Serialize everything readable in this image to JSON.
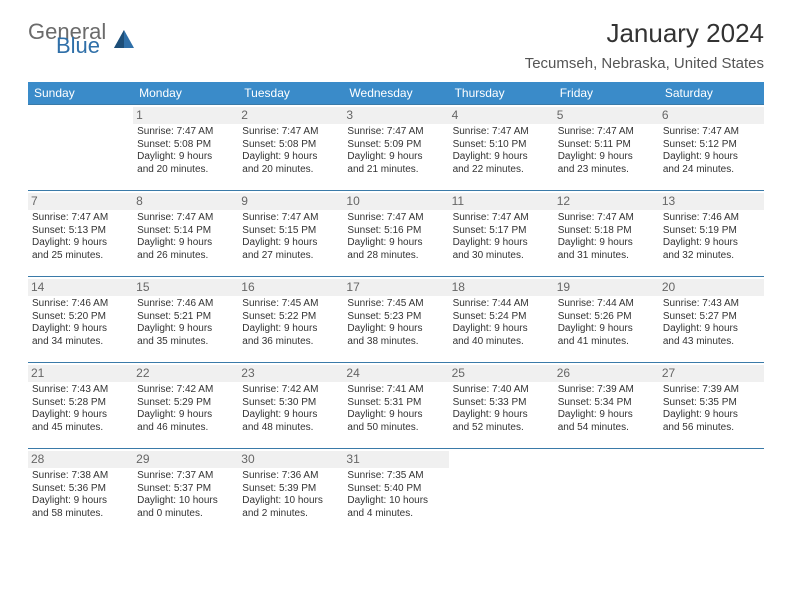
{
  "brand": {
    "general": "General",
    "blue": "Blue"
  },
  "colors": {
    "header_bg": "#3a8bc9",
    "header_text": "#ffffff",
    "row_border": "#3a7aa8",
    "daynum_bg": "#f0f0f0",
    "daynum_text": "#666666",
    "body_text": "#333333",
    "logo_grey": "#6b6b6b",
    "logo_blue": "#2f6fa8"
  },
  "title": "January 2024",
  "location": "Tecumseh, Nebraska, United States",
  "weekdays": [
    "Sunday",
    "Monday",
    "Tuesday",
    "Wednesday",
    "Thursday",
    "Friday",
    "Saturday"
  ],
  "weeks": [
    [
      null,
      {
        "n": "1",
        "sunrise": "Sunrise: 7:47 AM",
        "sunset": "Sunset: 5:08 PM",
        "d1": "Daylight: 9 hours",
        "d2": "and 20 minutes."
      },
      {
        "n": "2",
        "sunrise": "Sunrise: 7:47 AM",
        "sunset": "Sunset: 5:08 PM",
        "d1": "Daylight: 9 hours",
        "d2": "and 20 minutes."
      },
      {
        "n": "3",
        "sunrise": "Sunrise: 7:47 AM",
        "sunset": "Sunset: 5:09 PM",
        "d1": "Daylight: 9 hours",
        "d2": "and 21 minutes."
      },
      {
        "n": "4",
        "sunrise": "Sunrise: 7:47 AM",
        "sunset": "Sunset: 5:10 PM",
        "d1": "Daylight: 9 hours",
        "d2": "and 22 minutes."
      },
      {
        "n": "5",
        "sunrise": "Sunrise: 7:47 AM",
        "sunset": "Sunset: 5:11 PM",
        "d1": "Daylight: 9 hours",
        "d2": "and 23 minutes."
      },
      {
        "n": "6",
        "sunrise": "Sunrise: 7:47 AM",
        "sunset": "Sunset: 5:12 PM",
        "d1": "Daylight: 9 hours",
        "d2": "and 24 minutes."
      }
    ],
    [
      {
        "n": "7",
        "sunrise": "Sunrise: 7:47 AM",
        "sunset": "Sunset: 5:13 PM",
        "d1": "Daylight: 9 hours",
        "d2": "and 25 minutes."
      },
      {
        "n": "8",
        "sunrise": "Sunrise: 7:47 AM",
        "sunset": "Sunset: 5:14 PM",
        "d1": "Daylight: 9 hours",
        "d2": "and 26 minutes."
      },
      {
        "n": "9",
        "sunrise": "Sunrise: 7:47 AM",
        "sunset": "Sunset: 5:15 PM",
        "d1": "Daylight: 9 hours",
        "d2": "and 27 minutes."
      },
      {
        "n": "10",
        "sunrise": "Sunrise: 7:47 AM",
        "sunset": "Sunset: 5:16 PM",
        "d1": "Daylight: 9 hours",
        "d2": "and 28 minutes."
      },
      {
        "n": "11",
        "sunrise": "Sunrise: 7:47 AM",
        "sunset": "Sunset: 5:17 PM",
        "d1": "Daylight: 9 hours",
        "d2": "and 30 minutes."
      },
      {
        "n": "12",
        "sunrise": "Sunrise: 7:47 AM",
        "sunset": "Sunset: 5:18 PM",
        "d1": "Daylight: 9 hours",
        "d2": "and 31 minutes."
      },
      {
        "n": "13",
        "sunrise": "Sunrise: 7:46 AM",
        "sunset": "Sunset: 5:19 PM",
        "d1": "Daylight: 9 hours",
        "d2": "and 32 minutes."
      }
    ],
    [
      {
        "n": "14",
        "sunrise": "Sunrise: 7:46 AM",
        "sunset": "Sunset: 5:20 PM",
        "d1": "Daylight: 9 hours",
        "d2": "and 34 minutes."
      },
      {
        "n": "15",
        "sunrise": "Sunrise: 7:46 AM",
        "sunset": "Sunset: 5:21 PM",
        "d1": "Daylight: 9 hours",
        "d2": "and 35 minutes."
      },
      {
        "n": "16",
        "sunrise": "Sunrise: 7:45 AM",
        "sunset": "Sunset: 5:22 PM",
        "d1": "Daylight: 9 hours",
        "d2": "and 36 minutes."
      },
      {
        "n": "17",
        "sunrise": "Sunrise: 7:45 AM",
        "sunset": "Sunset: 5:23 PM",
        "d1": "Daylight: 9 hours",
        "d2": "and 38 minutes."
      },
      {
        "n": "18",
        "sunrise": "Sunrise: 7:44 AM",
        "sunset": "Sunset: 5:24 PM",
        "d1": "Daylight: 9 hours",
        "d2": "and 40 minutes."
      },
      {
        "n": "19",
        "sunrise": "Sunrise: 7:44 AM",
        "sunset": "Sunset: 5:26 PM",
        "d1": "Daylight: 9 hours",
        "d2": "and 41 minutes."
      },
      {
        "n": "20",
        "sunrise": "Sunrise: 7:43 AM",
        "sunset": "Sunset: 5:27 PM",
        "d1": "Daylight: 9 hours",
        "d2": "and 43 minutes."
      }
    ],
    [
      {
        "n": "21",
        "sunrise": "Sunrise: 7:43 AM",
        "sunset": "Sunset: 5:28 PM",
        "d1": "Daylight: 9 hours",
        "d2": "and 45 minutes."
      },
      {
        "n": "22",
        "sunrise": "Sunrise: 7:42 AM",
        "sunset": "Sunset: 5:29 PM",
        "d1": "Daylight: 9 hours",
        "d2": "and 46 minutes."
      },
      {
        "n": "23",
        "sunrise": "Sunrise: 7:42 AM",
        "sunset": "Sunset: 5:30 PM",
        "d1": "Daylight: 9 hours",
        "d2": "and 48 minutes."
      },
      {
        "n": "24",
        "sunrise": "Sunrise: 7:41 AM",
        "sunset": "Sunset: 5:31 PM",
        "d1": "Daylight: 9 hours",
        "d2": "and 50 minutes."
      },
      {
        "n": "25",
        "sunrise": "Sunrise: 7:40 AM",
        "sunset": "Sunset: 5:33 PM",
        "d1": "Daylight: 9 hours",
        "d2": "and 52 minutes."
      },
      {
        "n": "26",
        "sunrise": "Sunrise: 7:39 AM",
        "sunset": "Sunset: 5:34 PM",
        "d1": "Daylight: 9 hours",
        "d2": "and 54 minutes."
      },
      {
        "n": "27",
        "sunrise": "Sunrise: 7:39 AM",
        "sunset": "Sunset: 5:35 PM",
        "d1": "Daylight: 9 hours",
        "d2": "and 56 minutes."
      }
    ],
    [
      {
        "n": "28",
        "sunrise": "Sunrise: 7:38 AM",
        "sunset": "Sunset: 5:36 PM",
        "d1": "Daylight: 9 hours",
        "d2": "and 58 minutes."
      },
      {
        "n": "29",
        "sunrise": "Sunrise: 7:37 AM",
        "sunset": "Sunset: 5:37 PM",
        "d1": "Daylight: 10 hours",
        "d2": "and 0 minutes."
      },
      {
        "n": "30",
        "sunrise": "Sunrise: 7:36 AM",
        "sunset": "Sunset: 5:39 PM",
        "d1": "Daylight: 10 hours",
        "d2": "and 2 minutes."
      },
      {
        "n": "31",
        "sunrise": "Sunrise: 7:35 AM",
        "sunset": "Sunset: 5:40 PM",
        "d1": "Daylight: 10 hours",
        "d2": "and 4 minutes."
      },
      null,
      null,
      null
    ]
  ]
}
